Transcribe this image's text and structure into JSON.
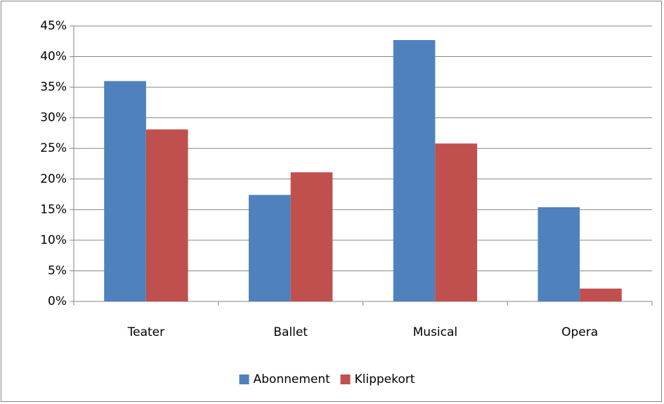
{
  "chart_data": {
    "type": "bar",
    "categories": [
      "Teater",
      "Ballet",
      "Musical",
      "Opera"
    ],
    "series": [
      {
        "name": "Abonnement",
        "color": "#4f81bd",
        "values": [
          36.0,
          17.4,
          42.7,
          15.4
        ]
      },
      {
        "name": "Klippekort",
        "color": "#c0504d",
        "values": [
          28.1,
          21.1,
          25.8,
          2.1
        ]
      }
    ],
    "ylim": [
      0,
      45
    ],
    "yticks": [
      {
        "value": 0,
        "label": "0%"
      },
      {
        "value": 5,
        "label": "5%"
      },
      {
        "value": 10,
        "label": "10%"
      },
      {
        "value": 15,
        "label": "15%"
      },
      {
        "value": 20,
        "label": "20%"
      },
      {
        "value": 25,
        "label": "25%"
      },
      {
        "value": 30,
        "label": "30%"
      },
      {
        "value": 35,
        "label": "35%"
      },
      {
        "value": 40,
        "label": "40%"
      },
      {
        "value": 45,
        "label": "45%"
      }
    ],
    "grid": true,
    "legend": "bottom"
  }
}
